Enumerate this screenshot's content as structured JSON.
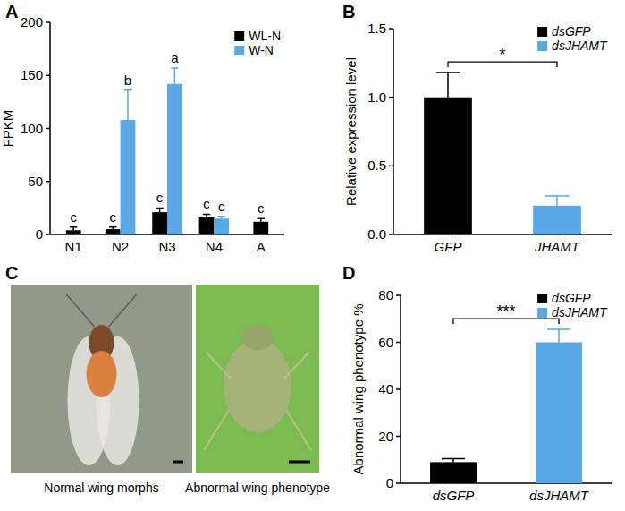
{
  "chart_data": [
    {
      "type": "bar",
      "label": "A",
      "y_label": "FPKM",
      "categories": [
        "N1",
        "N2",
        "N3",
        "N4",
        "A"
      ],
      "series": [
        {
          "name": "WL-N",
          "color": "#000000",
          "values": [
            4,
            5,
            21,
            16,
            12
          ],
          "errors": [
            3,
            2,
            4,
            3,
            3
          ],
          "letters": [
            "c",
            "c",
            "c",
            "c",
            "c"
          ]
        },
        {
          "name": "W-N",
          "color": "#5aa9e6",
          "values": [
            null,
            108,
            142,
            15,
            null
          ],
          "errors": [
            null,
            28,
            15,
            2,
            null
          ],
          "letters": [
            null,
            "b",
            "a",
            "c",
            null
          ]
        }
      ],
      "ylim": [
        0,
        200
      ],
      "yticks": [
        0,
        50,
        100,
        150,
        200
      ],
      "legend": "upper right"
    },
    {
      "type": "bar",
      "label": "B",
      "y_label": "Relative expression level",
      "categories": [
        "GFP",
        "JHAMT"
      ],
      "series": [
        {
          "name": "dsGFP",
          "color": "#000000",
          "values": [
            1.0,
            null
          ],
          "errors": [
            0.18,
            null
          ]
        },
        {
          "name": "dsJHAMT",
          "color": "#5aa9e6",
          "values": [
            null,
            0.21
          ],
          "errors": [
            null,
            0.07
          ]
        }
      ],
      "significance": "*",
      "ylim": [
        0,
        1.5
      ],
      "yticks": [
        {
          "value": 0,
          "label": "0.0"
        },
        0.5,
        {
          "value": 1,
          "label": "1.0"
        },
        1.5
      ],
      "legend": "upper right"
    },
    {
      "type": "bar",
      "label": "D",
      "y_label": "Abnormal wing phenotype %",
      "categories": [
        "dsGFP",
        "dsJHAMT"
      ],
      "series": [
        {
          "name": "dsGFP",
          "color": "#000000",
          "values": [
            9,
            null
          ],
          "errors": [
            1.5,
            null
          ]
        },
        {
          "name": "dsJHAMT",
          "color": "#5aa9e6",
          "values": [
            null,
            60
          ],
          "errors": [
            null,
            5.5
          ]
        }
      ],
      "significance": "***",
      "ylim": [
        0,
        80
      ],
      "yticks": [
        0,
        20,
        40,
        60,
        80
      ],
      "legend": "upper right"
    }
  ],
  "panel_c": {
    "label": "C",
    "images": [
      {
        "caption": "Normal wing morphs"
      },
      {
        "caption": "Abnormal wing phenotype"
      }
    ]
  }
}
